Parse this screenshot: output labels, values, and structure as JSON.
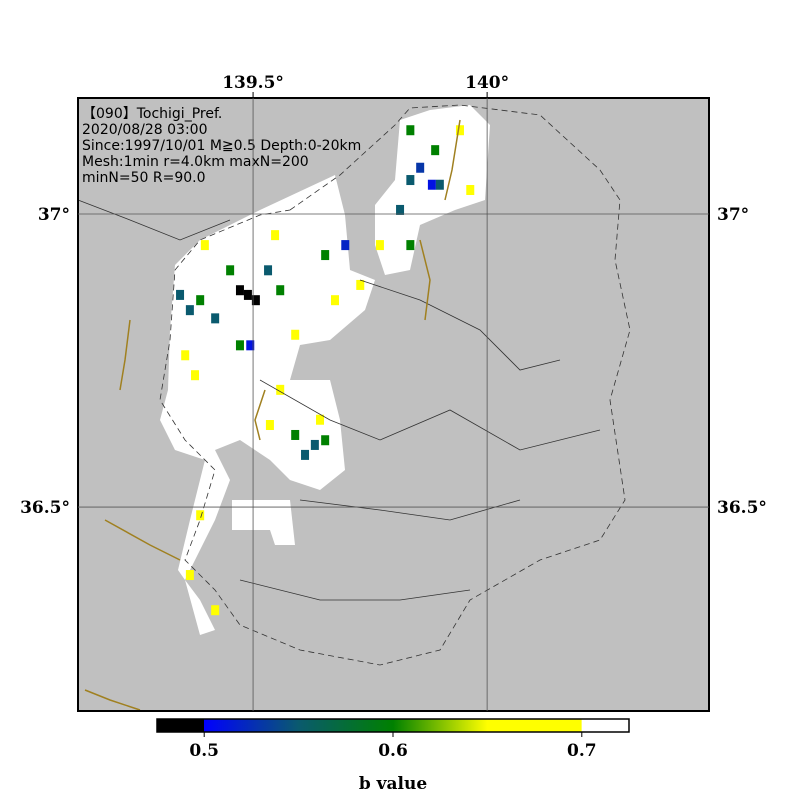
{
  "chart_data": {
    "type": "mesh-map",
    "annotation_lines": [
      "【090】Tochigi_Pref.",
      "2020/08/28 03:00",
      "Since:1997/10/01 M≧0.5 Depth:0-20km",
      "Mesh:1min r=4.0km maxN=200",
      "minN=50 R=90.0"
    ],
    "xlim": [
      139.126,
      140.474
    ],
    "ylim": [
      36.152,
      37.198
    ],
    "xticks": [
      {
        "value": 139.5,
        "label": "139.5°"
      },
      {
        "value": 140,
        "label": "140°"
      }
    ],
    "yticks": [
      {
        "value": 37,
        "label": "37°"
      },
      {
        "value": 36.5,
        "label": "36.5°"
      }
    ],
    "grid": true,
    "colorbar": {
      "label": "b value",
      "lim": [
        0.475,
        0.725
      ],
      "ticks": [
        0.5,
        0.6,
        0.7
      ],
      "colormap": [
        [
          0.475,
          "#000000"
        ],
        [
          0.4999,
          "#000000"
        ],
        [
          0.5,
          "#0000ff"
        ],
        [
          0.55,
          "#0a5a6e"
        ],
        [
          0.6,
          "#008000"
        ],
        [
          0.65,
          "#ffff00"
        ],
        [
          0.6999,
          "#ffff00"
        ],
        [
          0.7,
          "#ffffff"
        ],
        [
          0.725,
          "#ffffff"
        ]
      ]
    },
    "cells": {
      "lon": [
        139.489,
        139.472,
        139.506,
        139.494,
        139.882,
        139.697,
        139.857,
        139.344,
        139.365,
        139.419,
        139.532,
        139.836,
        139.899,
        139.611,
        139.632,
        139.814,
        139.387,
        139.451,
        139.558,
        139.654,
        139.836,
        139.889,
        139.59,
        139.654,
        139.836,
        139.472,
        139.355,
        139.376,
        139.397,
        139.547,
        139.536,
        139.643,
        139.771,
        139.729,
        139.387,
        139.365,
        139.419,
        139.964,
        139.942,
        139.675,
        139.59,
        139.558
      ],
      "lat": [
        36.862,
        36.87,
        36.853,
        36.776,
        37.05,
        36.947,
        37.079,
        36.862,
        36.836,
        36.822,
        36.904,
        37.058,
        37.05,
        36.589,
        36.606,
        37.007,
        36.853,
        36.904,
        36.87,
        36.93,
        37.143,
        37.109,
        36.623,
        36.614,
        36.947,
        36.776,
        36.759,
        36.725,
        36.947,
        36.964,
        36.64,
        36.649,
        36.947,
        36.879,
        36.486,
        36.384,
        36.324,
        37.041,
        37.143,
        36.853,
        36.794,
        36.7
      ],
      "b": [
        0.48,
        0.48,
        0.48,
        0.51,
        0.51,
        0.52,
        0.53,
        0.55,
        0.55,
        0.55,
        0.55,
        0.55,
        0.55,
        0.55,
        0.55,
        0.55,
        0.6,
        0.6,
        0.6,
        0.6,
        0.6,
        0.6,
        0.6,
        0.6,
        0.6,
        0.6,
        0.67,
        0.67,
        0.67,
        0.67,
        0.67,
        0.67,
        0.67,
        0.67,
        0.67,
        0.67,
        0.67,
        0.67,
        0.67,
        0.67,
        0.67,
        0.67
      ]
    }
  }
}
